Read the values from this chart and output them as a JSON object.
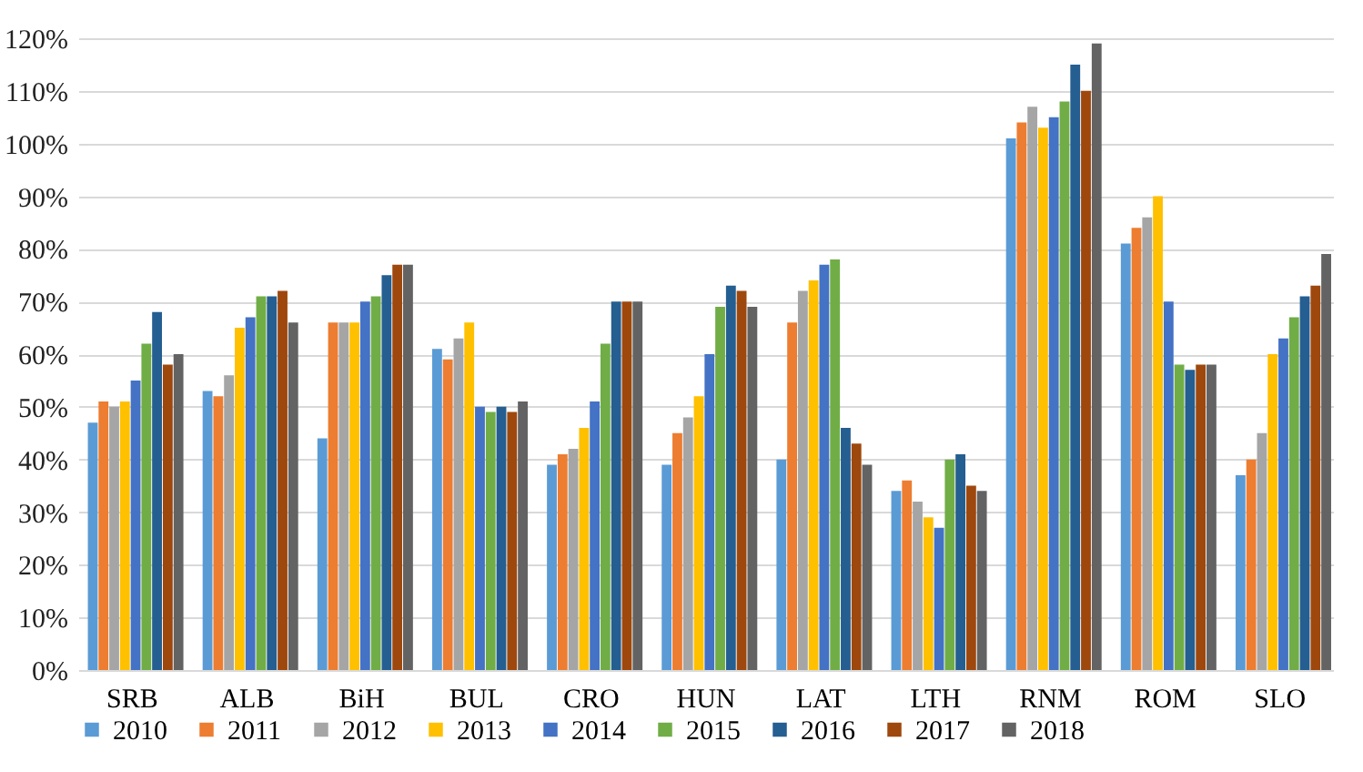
{
  "chart_data": {
    "type": "bar",
    "categories": [
      "SRB",
      "ALB",
      "BiH",
      "BUL",
      "CRO",
      "HUN",
      "LAT",
      "LTH",
      "RNM",
      "ROM",
      "SLO"
    ],
    "series": [
      {
        "name": "2010",
        "color": "#5b9bd5",
        "values": [
          47,
          53,
          44,
          61,
          39,
          39,
          40,
          34,
          101,
          81,
          37
        ]
      },
      {
        "name": "2011",
        "color": "#ed7d31",
        "values": [
          51,
          52,
          66,
          59,
          41,
          45,
          66,
          36,
          104,
          84,
          40
        ]
      },
      {
        "name": "2012",
        "color": "#a5a5a5",
        "values": [
          50,
          56,
          66,
          63,
          42,
          48,
          72,
          32,
          107,
          86,
          45
        ]
      },
      {
        "name": "2013",
        "color": "#ffc000",
        "values": [
          51,
          65,
          66,
          66,
          46,
          52,
          74,
          29,
          103,
          90,
          60
        ]
      },
      {
        "name": "2014",
        "color": "#4472c4",
        "values": [
          55,
          67,
          70,
          50,
          51,
          60,
          77,
          27,
          105,
          70,
          63
        ]
      },
      {
        "name": "2015",
        "color": "#70ad47",
        "values": [
          62,
          71,
          71,
          49,
          62,
          69,
          78,
          40,
          108,
          58,
          67
        ]
      },
      {
        "name": "2016",
        "color": "#255e91",
        "values": [
          68,
          71,
          75,
          50,
          70,
          73,
          46,
          41,
          115,
          57,
          71
        ]
      },
      {
        "name": "2017",
        "color": "#9e480e",
        "values": [
          58,
          72,
          77,
          49,
          70,
          72,
          43,
          35,
          110,
          58,
          73
        ]
      },
      {
        "name": "2018",
        "color": "#636363",
        "values": [
          60,
          66,
          77,
          51,
          70,
          69,
          39,
          34,
          119,
          58,
          79
        ]
      }
    ],
    "ylim": [
      0,
      120
    ],
    "yticks": [
      {
        "value": 0,
        "label": "0%"
      },
      {
        "value": 10,
        "label": "10%"
      },
      {
        "value": 20,
        "label": "20%"
      },
      {
        "value": 30,
        "label": "30%"
      },
      {
        "value": 40,
        "label": "40%"
      },
      {
        "value": 50,
        "label": "50%"
      },
      {
        "value": 60,
        "label": "60%"
      },
      {
        "value": 70,
        "label": "70%"
      },
      {
        "value": 80,
        "label": "80%"
      },
      {
        "value": 90,
        "label": "90%"
      },
      {
        "value": 100,
        "label": "100%"
      },
      {
        "value": 110,
        "label": "110%"
      },
      {
        "value": 120,
        "label": "120%"
      }
    ],
    "grid": "y",
    "legend": "bottom"
  }
}
